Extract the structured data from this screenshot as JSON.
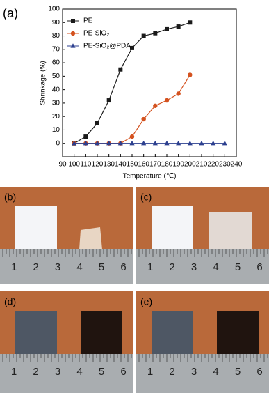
{
  "chart_data": {
    "type": "line",
    "panel_label": "(a)",
    "xlabel": "Temperature (℃)",
    "ylabel": "Shrinkage (%)",
    "xlim": [
      90,
      240
    ],
    "xticks": [
      90,
      100,
      110,
      120,
      130,
      140,
      150,
      160,
      170,
      180,
      190,
      200,
      210,
      220,
      230,
      240
    ],
    "ylim": [
      -10,
      100
    ],
    "yticks": [
      0,
      10,
      20,
      30,
      40,
      50,
      60,
      70,
      80,
      90,
      100
    ],
    "legend": "upper left",
    "series": [
      {
        "name": "PE",
        "color": "#1a1a1a",
        "marker": "square",
        "x": [
          100,
          110,
          120,
          130,
          140,
          150,
          160,
          170,
          180,
          190,
          200
        ],
        "values": [
          0,
          5,
          15,
          32,
          55,
          71,
          80,
          82,
          85,
          87,
          90
        ]
      },
      {
        "name": "PE-SiO₂",
        "color": "#d4521f",
        "marker": "circle",
        "x": [
          100,
          110,
          120,
          130,
          140,
          150,
          160,
          170,
          180,
          190,
          200
        ],
        "values": [
          0,
          0,
          0,
          0,
          0,
          5,
          18,
          28,
          32,
          37,
          51
        ]
      },
      {
        "name": "PE-SiO₂@PDA",
        "color": "#2c3f8f",
        "marker": "triangle",
        "x": [
          100,
          110,
          120,
          130,
          140,
          150,
          160,
          170,
          180,
          190,
          200,
          210,
          220,
          230
        ],
        "values": [
          0,
          0,
          0,
          0,
          0,
          0,
          0,
          0,
          0,
          0,
          0,
          0,
          0,
          0
        ]
      }
    ]
  },
  "photos": {
    "labels": [
      "(b)",
      "(c)",
      "(d)",
      "(e)"
    ],
    "ruler_labels": [
      "1",
      "2",
      "3",
      "4",
      "5",
      "6"
    ]
  }
}
